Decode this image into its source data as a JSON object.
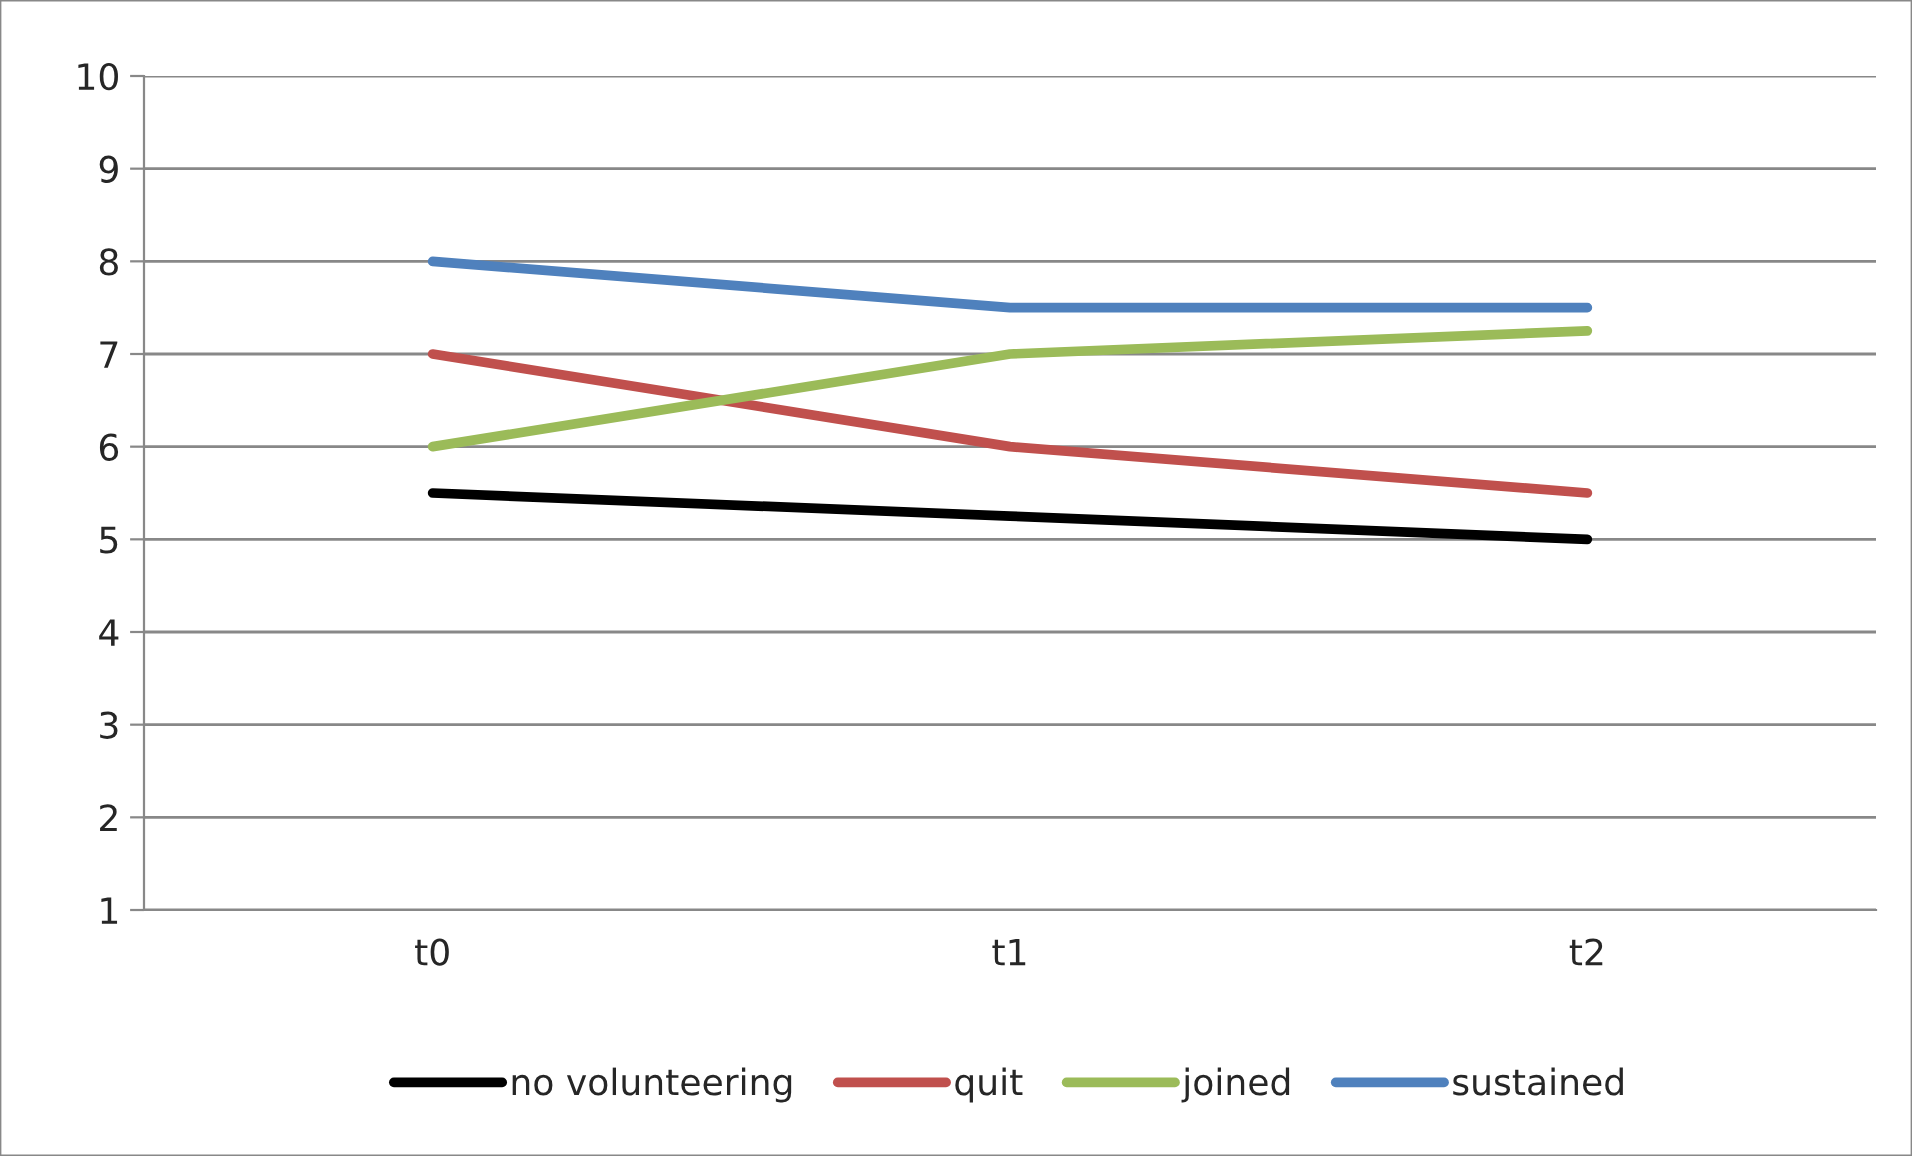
{
  "chart_data": {
    "type": "line",
    "categories": [
      "t0",
      "t1",
      "t2"
    ],
    "series": [
      {
        "name": "no volunteering",
        "color": "#000000",
        "values": [
          5.5,
          5.25,
          5.0
        ]
      },
      {
        "name": "quit",
        "color": "#c0504d",
        "values": [
          7,
          6,
          5.5
        ]
      },
      {
        "name": "joined",
        "color": "#9bbb59",
        "values": [
          6,
          7,
          7.25
        ]
      },
      {
        "name": "sustained",
        "color": "#4f81bd",
        "values": [
          8,
          7.5,
          7.5
        ]
      }
    ],
    "ylim": [
      1,
      10
    ],
    "yticks": [
      1,
      2,
      3,
      4,
      5,
      6,
      7,
      8,
      9,
      10
    ],
    "grid": "y",
    "legend": "bottom",
    "marker": "none",
    "line_style": "solid"
  }
}
